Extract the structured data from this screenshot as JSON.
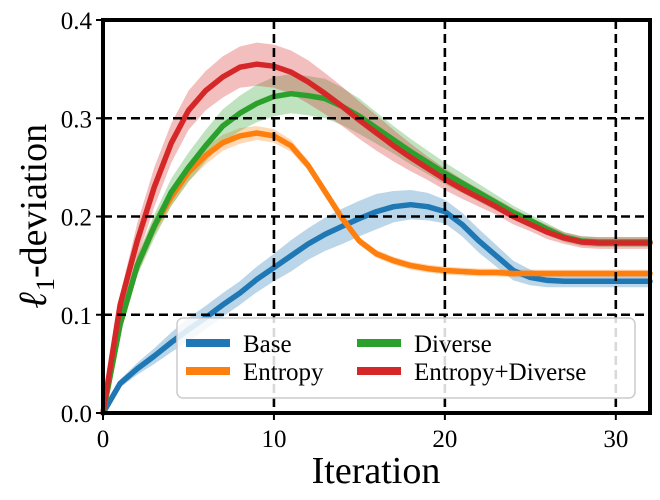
{
  "chart_data": {
    "type": "line",
    "title": "",
    "xlabel": "Iteration",
    "ylabel": {
      "main": "ℓ",
      "subscript": "1",
      "suffix": "-deviation"
    },
    "xlim": [
      0,
      32
    ],
    "ylim": [
      0.0,
      0.4
    ],
    "x_ticks": [
      0,
      10,
      20,
      30
    ],
    "y_ticks": [
      0.0,
      0.1,
      0.2,
      0.3,
      0.4
    ],
    "x_tick_labels": [
      "0",
      "10",
      "20",
      "30"
    ],
    "y_tick_labels": [
      "0.0",
      "0.1",
      "0.2",
      "0.3",
      "0.4"
    ],
    "grid": {
      "on": true,
      "style": "dashed",
      "x": [
        10,
        20,
        30
      ],
      "y": [
        0.1,
        0.2,
        0.3
      ]
    },
    "legend": {
      "placement": "lower-right",
      "columns": 2
    },
    "x": [
      0,
      1,
      2,
      3,
      4,
      5,
      6,
      7,
      8,
      9,
      10,
      11,
      12,
      13,
      14,
      15,
      16,
      17,
      18,
      19,
      20,
      21,
      22,
      23,
      24,
      25,
      26,
      27,
      28,
      29,
      30,
      31,
      32
    ],
    "series": [
      {
        "name": "Base",
        "color": "#1f77b4",
        "values": [
          0.0,
          0.03,
          0.045,
          0.058,
          0.072,
          0.085,
          0.097,
          0.11,
          0.122,
          0.136,
          0.148,
          0.16,
          0.172,
          0.182,
          0.19,
          0.198,
          0.205,
          0.21,
          0.212,
          0.21,
          0.205,
          0.192,
          0.175,
          0.16,
          0.145,
          0.138,
          0.135,
          0.134,
          0.134,
          0.134,
          0.134,
          0.134,
          0.134
        ],
        "band": [
          0.0,
          0.004,
          0.006,
          0.008,
          0.01,
          0.012,
          0.012,
          0.012,
          0.012,
          0.013,
          0.014,
          0.016,
          0.016,
          0.017,
          0.018,
          0.018,
          0.018,
          0.016,
          0.015,
          0.014,
          0.012,
          0.012,
          0.012,
          0.011,
          0.01,
          0.008,
          0.007,
          0.006,
          0.006,
          0.006,
          0.006,
          0.006,
          0.006
        ]
      },
      {
        "name": "Entropy",
        "color": "#ff7f0e",
        "values": [
          0.0,
          0.09,
          0.15,
          0.19,
          0.22,
          0.245,
          0.262,
          0.275,
          0.282,
          0.285,
          0.282,
          0.272,
          0.252,
          0.225,
          0.198,
          0.175,
          0.162,
          0.155,
          0.15,
          0.147,
          0.145,
          0.144,
          0.143,
          0.143,
          0.142,
          0.142,
          0.142,
          0.142,
          0.142,
          0.142,
          0.142,
          0.142,
          0.142
        ],
        "band": [
          0.0,
          0.008,
          0.009,
          0.009,
          0.009,
          0.009,
          0.009,
          0.008,
          0.008,
          0.007,
          0.007,
          0.006,
          0.005,
          0.005,
          0.004,
          0.004,
          0.004,
          0.004,
          0.004,
          0.004,
          0.004,
          0.004,
          0.004,
          0.004,
          0.004,
          0.004,
          0.004,
          0.004,
          0.004,
          0.004,
          0.004,
          0.004,
          0.004
        ]
      },
      {
        "name": "Diverse",
        "color": "#2ca02c",
        "values": [
          0.0,
          0.09,
          0.15,
          0.19,
          0.225,
          0.25,
          0.272,
          0.292,
          0.305,
          0.315,
          0.322,
          0.325,
          0.323,
          0.32,
          0.312,
          0.302,
          0.29,
          0.278,
          0.266,
          0.255,
          0.244,
          0.234,
          0.224,
          0.214,
          0.204,
          0.196,
          0.187,
          0.179,
          0.175,
          0.174,
          0.174,
          0.174,
          0.174
        ],
        "band": [
          0.0,
          0.006,
          0.01,
          0.012,
          0.014,
          0.015,
          0.016,
          0.017,
          0.018,
          0.019,
          0.02,
          0.02,
          0.02,
          0.02,
          0.019,
          0.018,
          0.016,
          0.014,
          0.013,
          0.012,
          0.011,
          0.01,
          0.009,
          0.008,
          0.007,
          0.006,
          0.006,
          0.005,
          0.005,
          0.005,
          0.005,
          0.005,
          0.005
        ]
      },
      {
        "name": "Entropy+Diverse",
        "color": "#d62728",
        "values": [
          0.0,
          0.11,
          0.175,
          0.23,
          0.275,
          0.308,
          0.328,
          0.342,
          0.352,
          0.355,
          0.353,
          0.347,
          0.337,
          0.325,
          0.312,
          0.298,
          0.285,
          0.272,
          0.26,
          0.249,
          0.238,
          0.228,
          0.219,
          0.21,
          0.2,
          0.192,
          0.184,
          0.178,
          0.174,
          0.173,
          0.173,
          0.173,
          0.173
        ],
        "band": [
          0.0,
          0.01,
          0.018,
          0.02,
          0.02,
          0.02,
          0.02,
          0.021,
          0.021,
          0.022,
          0.022,
          0.022,
          0.022,
          0.021,
          0.02,
          0.019,
          0.018,
          0.016,
          0.014,
          0.012,
          0.011,
          0.01,
          0.009,
          0.008,
          0.008,
          0.007,
          0.007,
          0.006,
          0.006,
          0.006,
          0.006,
          0.006,
          0.006
        ]
      }
    ]
  }
}
